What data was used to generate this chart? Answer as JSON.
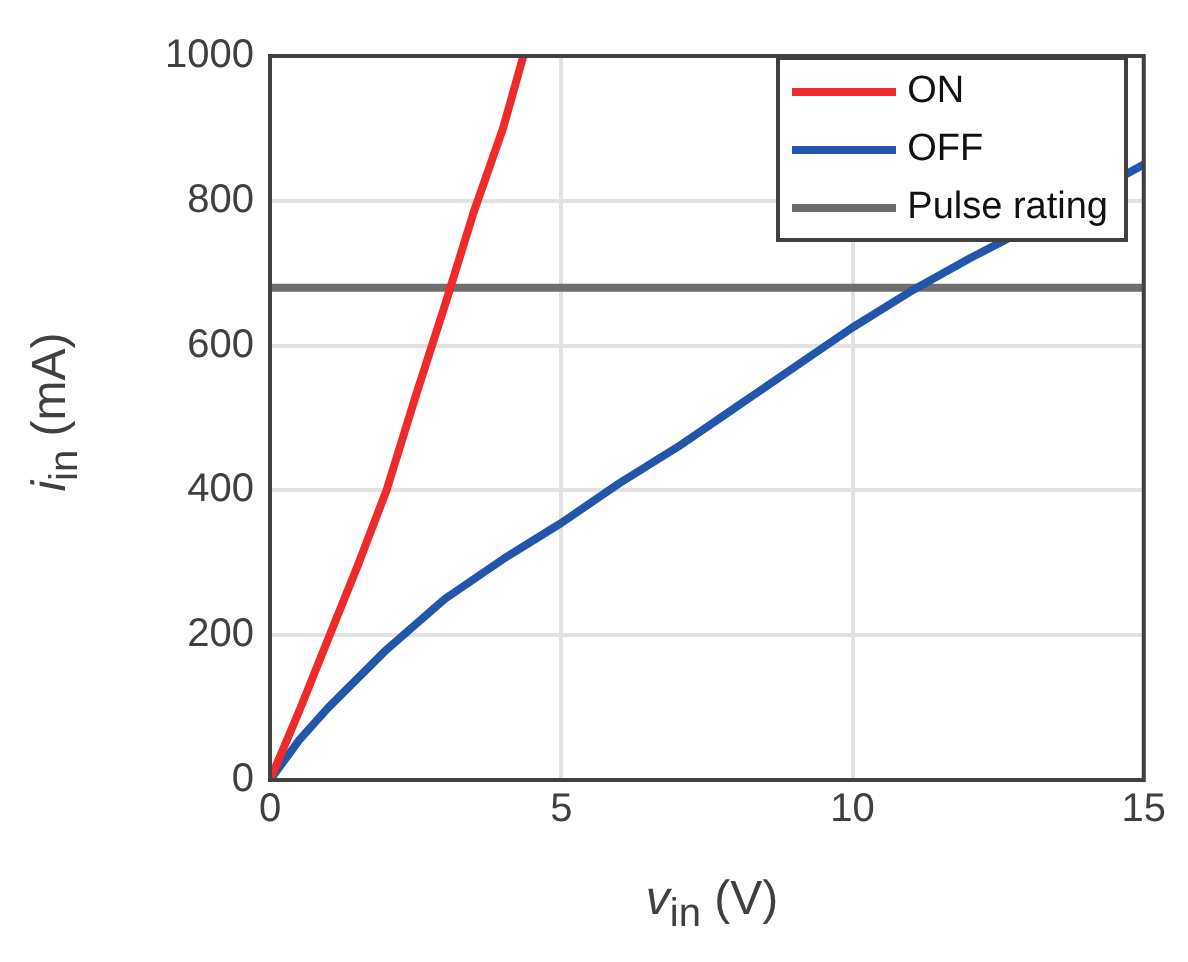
{
  "chart_data": {
    "type": "line",
    "xlabel": "v$_{in}$ (V)",
    "ylabel": "i$_{in}$ (mA)",
    "xlim": [
      0,
      15
    ],
    "ylim": [
      0,
      1000
    ],
    "xticks": [
      0,
      5,
      10,
      15
    ],
    "yticks": [
      0,
      200,
      400,
      600,
      800,
      1000
    ],
    "grid": true,
    "legend": "top right",
    "marker": "none",
    "line_style": "solid",
    "series": [
      {
        "name": "ON",
        "color": "#ee2a2a",
        "x": [
          0,
          0.5,
          1,
          1.5,
          2,
          2.5,
          3,
          3.5,
          4,
          4.35
        ],
        "values": [
          0,
          95,
          195,
          295,
          400,
          530,
          655,
          785,
          900,
          1000
        ]
      },
      {
        "name": "OFF",
        "color": "#2156aa",
        "x": [
          0,
          0.5,
          1,
          2,
          3,
          4,
          5,
          6,
          7,
          8,
          9,
          10,
          11,
          12,
          12.6,
          13,
          14,
          15
        ],
        "values": [
          0,
          55,
          100,
          180,
          250,
          305,
          355,
          410,
          460,
          515,
          570,
          625,
          675,
          720,
          745,
          null,
          null,
          850
        ]
      },
      {
        "name": "Pulse rating",
        "color": "#6e6e6e",
        "x": [
          0,
          15
        ],
        "values": [
          680,
          680
        ]
      }
    ]
  }
}
